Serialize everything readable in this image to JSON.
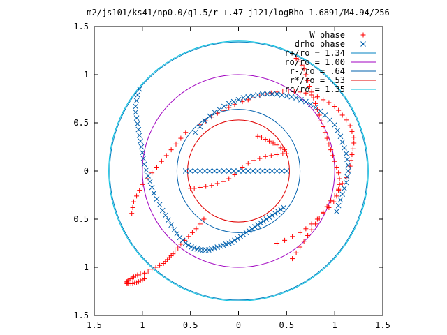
{
  "chart_data": {
    "type": "scatter",
    "title": "m2/js101/ks41/np0.0/q1.5/r-+.47-j121/logRho-1.6891/M4.94/256",
    "xlabel": "",
    "ylabel": "",
    "xlim": [
      -1.5,
      1.5
    ],
    "ylim": [
      -1.5,
      1.5
    ],
    "x_ticks": [
      -1.5,
      -1,
      -0.5,
      0,
      0.5,
      1,
      1.5
    ],
    "x_tick_labels": [
      "1.5",
      "1",
      "0.5",
      "0",
      "0.5",
      "1",
      "1.5"
    ],
    "y_ticks": [
      -1.5,
      -1,
      -0.5,
      0,
      0.5,
      1,
      1.5
    ],
    "y_tick_labels": [
      "1.5",
      "1",
      "0.5",
      "0",
      "0.5",
      "1",
      "1.5"
    ],
    "grid": false,
    "legend_position": "top-right",
    "series": [
      {
        "name": "W phase",
        "kind": "points",
        "marker": "plus",
        "color": "#ff0000",
        "x": [
          0.04,
          0.1,
          0.16,
          0.22,
          0.28,
          0.34,
          0.4,
          0.46,
          0.5,
          -0.04,
          -0.1,
          -0.16,
          -0.22,
          -0.28,
          -0.34,
          -0.4,
          -0.46,
          -0.5,
          0.48,
          0.44,
          0.4,
          0.36,
          0.32,
          0.28,
          0.24,
          0.2,
          -0.36,
          -0.4,
          -0.44,
          -0.48,
          -0.52,
          -0.56,
          -0.6,
          -0.63,
          -0.66,
          -0.68,
          -0.7,
          -0.72,
          -0.74,
          -0.76,
          -0.78,
          -0.82,
          -0.86,
          -0.9,
          -0.94,
          -0.98,
          -1.02,
          -1.05,
          -1.07,
          -1.09,
          -1.1,
          -1.12,
          -1.14,
          -1.15,
          -1.16,
          -1.16,
          -1.16,
          -1.15,
          -1.14,
          -1.12,
          -1.1,
          -1.08,
          -1.06,
          -1.04,
          -1.02,
          -1.0,
          -0.98,
          0.4,
          0.48,
          0.56,
          0.64,
          0.7,
          0.76,
          0.82,
          0.88,
          0.94,
          0.99,
          1.02,
          1.04,
          1.05,
          1.05,
          1.04,
          1.02,
          1.0,
          0.98,
          0.96,
          0.94,
          0.92,
          0.9,
          0.88,
          0.86,
          0.84,
          0.82,
          0.8,
          0.78,
          0.76,
          0.74,
          0.72,
          0.7,
          0.68,
          0.66,
          0.64,
          0.62,
          0.6,
          -0.4,
          -0.34,
          -0.28,
          -0.22,
          -0.16,
          -0.1,
          -0.04,
          0.04,
          0.1,
          0.16,
          0.22,
          0.28,
          0.34,
          0.4,
          0.46,
          0.52,
          0.58,
          0.64,
          0.7,
          0.76,
          0.82,
          0.88,
          0.94,
          1.0,
          1.04,
          1.08,
          1.12,
          1.16,
          1.18,
          1.2,
          1.2,
          1.19,
          1.18,
          1.17,
          1.16,
          1.15,
          1.12,
          1.08,
          1.04,
          1.0,
          0.96,
          0.92,
          0.88,
          0.84,
          0.8,
          0.76,
          0.72,
          0.68,
          0.64,
          0.6,
          0.56,
          -0.55,
          -0.6,
          -0.65,
          -0.7,
          -0.75,
          -0.8,
          -0.85,
          -0.9,
          -0.95,
          -1.0,
          -1.03,
          -1.06,
          -1.09,
          -1.1,
          -1.11
        ],
        "y": [
          0.04,
          0.08,
          0.11,
          0.13,
          0.15,
          0.16,
          0.17,
          0.18,
          0.18,
          -0.04,
          -0.08,
          -0.11,
          -0.13,
          -0.15,
          -0.16,
          -0.17,
          -0.18,
          -0.18,
          0.22,
          0.24,
          0.27,
          0.29,
          0.31,
          0.33,
          0.35,
          0.36,
          -0.5,
          -0.55,
          -0.6,
          -0.64,
          -0.68,
          -0.72,
          -0.76,
          -0.8,
          -0.83,
          -0.86,
          -0.88,
          -0.9,
          -0.92,
          -0.94,
          -0.96,
          -0.98,
          -1.0,
          -1.02,
          -1.04,
          -1.06,
          -1.07,
          -1.08,
          -1.09,
          -1.1,
          -1.11,
          -1.12,
          -1.13,
          -1.14,
          -1.15,
          -1.16,
          -1.17,
          -1.17,
          -1.17,
          -1.17,
          -1.17,
          -1.16,
          -1.16,
          -1.15,
          -1.14,
          -1.13,
          -1.12,
          -0.75,
          -0.72,
          -0.68,
          -0.64,
          -0.6,
          -0.55,
          -0.5,
          -0.44,
          -0.38,
          -0.32,
          -0.26,
          -0.2,
          -0.14,
          -0.08,
          -0.02,
          0.04,
          0.1,
          0.16,
          0.22,
          0.28,
          0.34,
          0.4,
          0.46,
          0.52,
          0.58,
          0.64,
          0.7,
          0.76,
          0.82,
          0.88,
          0.94,
          1.0,
          1.06,
          1.1,
          1.14,
          1.16,
          1.17,
          0.48,
          0.52,
          0.56,
          0.6,
          0.63,
          0.66,
          0.69,
          0.72,
          0.74,
          0.76,
          0.78,
          0.8,
          0.81,
          0.82,
          0.83,
          0.83,
          0.83,
          0.82,
          0.81,
          0.79,
          0.77,
          0.74,
          0.71,
          0.67,
          0.63,
          0.58,
          0.53,
          0.47,
          0.41,
          0.35,
          0.29,
          0.23,
          0.17,
          0.11,
          0.05,
          -0.01,
          -0.07,
          -0.13,
          -0.19,
          -0.25,
          -0.31,
          -0.37,
          -0.43,
          -0.49,
          -0.55,
          -0.61,
          -0.67,
          -0.73,
          -0.79,
          -0.85,
          -0.91,
          0.4,
          0.34,
          0.28,
          0.22,
          0.16,
          0.1,
          0.04,
          -0.02,
          -0.08,
          -0.14,
          -0.2,
          -0.26,
          -0.32,
          -0.38,
          -0.44
        ]
      },
      {
        "name": "drho phase",
        "kind": "points",
        "marker": "cross",
        "color": "#0060ad",
        "x": [
          -0.55,
          -0.5,
          -0.45,
          -0.4,
          -0.35,
          -0.3,
          -0.25,
          -0.2,
          -0.15,
          -0.1,
          -0.05,
          0.0,
          0.05,
          0.1,
          0.15,
          0.2,
          0.25,
          0.3,
          0.35,
          0.4,
          0.45,
          0.5,
          -0.45,
          -0.4,
          -0.35,
          -0.3,
          -0.25,
          -0.2,
          -0.15,
          -0.1,
          -0.05,
          0.0,
          0.05,
          0.1,
          0.15,
          0.2,
          0.25,
          0.3,
          0.35,
          0.4,
          0.45,
          0.5,
          0.55,
          0.6,
          0.65,
          0.7,
          0.75,
          0.8,
          0.85,
          0.9,
          0.95,
          1.0,
          1.03,
          1.06,
          1.08,
          1.1,
          1.12,
          1.13,
          1.14,
          1.14,
          1.13,
          1.12,
          1.1,
          1.08,
          1.06,
          1.04,
          1.02,
          -1.03,
          -1.05,
          -1.06,
          -1.07,
          -1.07,
          -1.06,
          -1.05,
          -1.04,
          -1.03,
          -1.02,
          -1.01,
          -1.0,
          -0.99,
          -0.98,
          -0.96,
          -0.94,
          -0.92,
          -0.9,
          -0.88,
          -0.85,
          -0.82,
          -0.79,
          -0.76,
          -0.73,
          -0.7,
          -0.67,
          -0.64,
          -0.61,
          -0.58,
          -0.55,
          -0.52,
          -0.49,
          -0.46,
          -0.43,
          -0.4,
          -0.37,
          -0.34,
          -0.31,
          -0.28,
          -0.25,
          -0.22,
          -0.19,
          -0.16,
          -0.13,
          -0.1,
          -0.07,
          -0.04,
          -0.01,
          0.02,
          0.05,
          0.08,
          0.11,
          0.14,
          0.17,
          0.2,
          0.23,
          0.26,
          0.29,
          0.32,
          0.35,
          0.38,
          0.41,
          0.44,
          0.47
        ],
        "y": [
          0.0,
          0.0,
          0.0,
          0.0,
          0.0,
          0.0,
          0.0,
          0.0,
          0.0,
          0.0,
          0.0,
          0.0,
          0.0,
          0.0,
          0.0,
          0.0,
          0.0,
          0.0,
          0.0,
          0.0,
          0.0,
          0.0,
          0.4,
          0.46,
          0.52,
          0.57,
          0.61,
          0.64,
          0.67,
          0.7,
          0.72,
          0.74,
          0.76,
          0.77,
          0.78,
          0.79,
          0.8,
          0.8,
          0.8,
          0.8,
          0.79,
          0.78,
          0.77,
          0.76,
          0.74,
          0.72,
          0.69,
          0.66,
          0.62,
          0.58,
          0.53,
          0.48,
          0.42,
          0.36,
          0.3,
          0.24,
          0.18,
          0.12,
          0.06,
          0.0,
          -0.06,
          -0.12,
          -0.18,
          -0.24,
          -0.3,
          -0.36,
          -0.42,
          0.85,
          0.79,
          0.73,
          0.67,
          0.61,
          0.55,
          0.49,
          0.43,
          0.37,
          0.31,
          0.25,
          0.19,
          0.13,
          0.07,
          0.01,
          -0.05,
          -0.11,
          -0.17,
          -0.23,
          -0.29,
          -0.35,
          -0.41,
          -0.46,
          -0.51,
          -0.56,
          -0.61,
          -0.65,
          -0.69,
          -0.72,
          -0.75,
          -0.77,
          -0.79,
          -0.8,
          -0.81,
          -0.82,
          -0.82,
          -0.82,
          -0.82,
          -0.81,
          -0.8,
          -0.79,
          -0.78,
          -0.77,
          -0.76,
          -0.75,
          -0.74,
          -0.72,
          -0.7,
          -0.68,
          -0.66,
          -0.64,
          -0.62,
          -0.6,
          -0.58,
          -0.56,
          -0.54,
          -0.52,
          -0.5,
          -0.48,
          -0.46,
          -0.44,
          -0.42,
          -0.4,
          -0.38
        ]
      },
      {
        "name": "r+/ro = 1.34",
        "kind": "circle",
        "r": 1.34,
        "color": "#0080c0"
      },
      {
        "name": "ro/ro = 1.00",
        "kind": "circle",
        "r": 1.0,
        "color": "#a000c0"
      },
      {
        "name": "r-/ro = .64",
        "kind": "circle",
        "r": 0.64,
        "color": "#0060ad"
      },
      {
        "name": "r*/ro = .53",
        "kind": "circle",
        "r": 0.53,
        "color": "#e00000"
      },
      {
        "name": "rc/ro = 1.35",
        "kind": "circle",
        "r": 1.35,
        "color": "#00c0e0"
      }
    ]
  }
}
